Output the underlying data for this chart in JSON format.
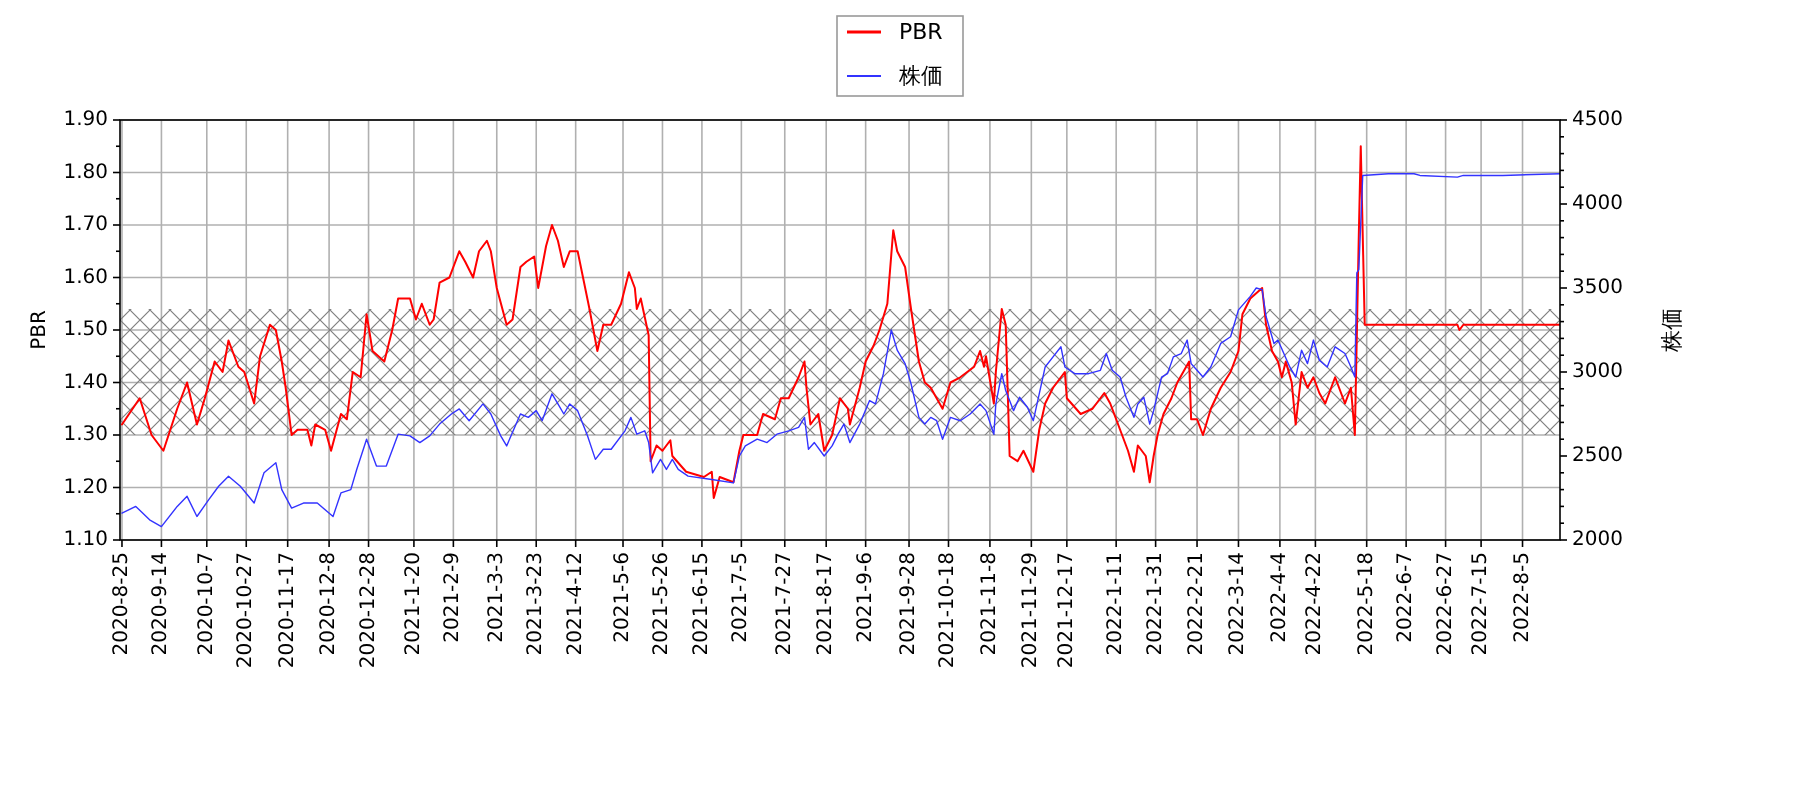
{
  "chart_data": {
    "type": "line",
    "ylabel": "PBR",
    "y2label": "株価",
    "legend": "top",
    "grid": true,
    "xlim": [
      "2020-08-24",
      "2022-08-24"
    ],
    "xticks": [
      {
        "value": "2020-08-25",
        "label": "2020-8-25"
      },
      {
        "value": "2020-09-14",
        "label": "2020-9-14"
      },
      {
        "value": "2020-10-07",
        "label": "2020-10-7"
      },
      {
        "value": "2020-10-27",
        "label": "2020-10-27"
      },
      {
        "value": "2020-11-17",
        "label": "2020-11-17"
      },
      {
        "value": "2020-12-08",
        "label": "2020-12-8"
      },
      {
        "value": "2020-12-28",
        "label": "2020-12-28"
      },
      {
        "value": "2021-01-20",
        "label": "2021-1-20"
      },
      {
        "value": "2021-02-09",
        "label": "2021-2-9"
      },
      {
        "value": "2021-03-03",
        "label": "2021-3-3"
      },
      {
        "value": "2021-03-23",
        "label": "2021-3-23"
      },
      {
        "value": "2021-04-12",
        "label": "2021-4-12"
      },
      {
        "value": "2021-05-06",
        "label": "2021-5-6"
      },
      {
        "value": "2021-05-26",
        "label": "2021-5-26"
      },
      {
        "value": "2021-06-15",
        "label": "2021-6-15"
      },
      {
        "value": "2021-07-05",
        "label": "2021-7-5"
      },
      {
        "value": "2021-07-27",
        "label": "2021-7-27"
      },
      {
        "value": "2021-08-17",
        "label": "2021-8-17"
      },
      {
        "value": "2021-09-06",
        "label": "2021-9-6"
      },
      {
        "value": "2021-09-28",
        "label": "2021-9-28"
      },
      {
        "value": "2021-10-18",
        "label": "2021-10-18"
      },
      {
        "value": "2021-11-08",
        "label": "2021-11-8"
      },
      {
        "value": "2021-11-29",
        "label": "2021-11-29"
      },
      {
        "value": "2021-12-17",
        "label": "2021-12-17"
      },
      {
        "value": "2022-01-11",
        "label": "2022-1-11"
      },
      {
        "value": "2022-01-31",
        "label": "2022-1-31"
      },
      {
        "value": "2022-02-21",
        "label": "2022-2-21"
      },
      {
        "value": "2022-03-14",
        "label": "2022-3-14"
      },
      {
        "value": "2022-04-04",
        "label": "2022-4-4"
      },
      {
        "value": "2022-04-22",
        "label": "2022-4-22"
      },
      {
        "value": "2022-05-18",
        "label": "2022-5-18"
      },
      {
        "value": "2022-06-07",
        "label": "2022-6-7"
      },
      {
        "value": "2022-06-27",
        "label": "2022-6-27"
      },
      {
        "value": "2022-07-15",
        "label": "2022-7-15"
      },
      {
        "value": "2022-08-05",
        "label": "2022-8-5"
      }
    ],
    "ylim": [
      1.1,
      1.9
    ],
    "yticks": [
      {
        "value": 1.1,
        "label": "1.10"
      },
      {
        "value": 1.15,
        "label": null
      },
      {
        "value": 1.2,
        "label": "1.20"
      },
      {
        "value": 1.25,
        "label": null
      },
      {
        "value": 1.3,
        "label": "1.30"
      },
      {
        "value": 1.35,
        "label": null
      },
      {
        "value": 1.4,
        "label": "1.40"
      },
      {
        "value": 1.45,
        "label": null
      },
      {
        "value": 1.5,
        "label": "1.50"
      },
      {
        "value": 1.55,
        "label": null
      },
      {
        "value": 1.6,
        "label": "1.60"
      },
      {
        "value": 1.65,
        "label": null
      },
      {
        "value": 1.7,
        "label": "1.70"
      },
      {
        "value": 1.75,
        "label": null
      },
      {
        "value": 1.8,
        "label": "1.80"
      },
      {
        "value": 1.85,
        "label": null
      },
      {
        "value": 1.9,
        "label": "1.90"
      }
    ],
    "y2lim": [
      2000,
      4500
    ],
    "y2ticks": [
      2000,
      {
        "value": 2100,
        "label": null
      },
      {
        "value": 2200,
        "label": null
      },
      {
        "value": 2300,
        "label": null
      },
      {
        "value": 2400,
        "label": null
      },
      2500,
      {
        "value": 2600,
        "label": null
      },
      {
        "value": 2700,
        "label": null
      },
      {
        "value": 2800,
        "label": null
      },
      {
        "value": 2900,
        "label": null
      },
      3000,
      {
        "value": 3100,
        "label": null
      },
      {
        "value": 3200,
        "label": null
      },
      {
        "value": 3300,
        "label": null
      },
      {
        "value": 3400,
        "label": null
      },
      3500,
      {
        "value": 3600,
        "label": null
      },
      {
        "value": 3700,
        "label": null
      },
      {
        "value": 3800,
        "label": null
      },
      {
        "value": 3900,
        "label": null
      },
      4000,
      {
        "value": 4100,
        "label": null
      },
      {
        "value": 4200,
        "label": null
      },
      {
        "value": 4300,
        "label": null
      },
      {
        "value": 4400,
        "label": null
      },
      4500
    ],
    "bands": [
      {
        "axis": "y",
        "from": 1.3,
        "to": 1.54,
        "color": "#808080"
      }
    ],
    "series": [
      {
        "name": "PBR",
        "color": "#ff0000",
        "x": [
          "2020-08-25",
          "2020-09-03",
          "2020-09-09",
          "2020-09-15",
          "2020-09-22",
          "2020-09-27",
          "2020-10-02",
          "2020-10-06",
          "2020-10-11",
          "2020-10-15",
          "2020-10-18",
          "2020-10-23",
          "2020-10-26",
          "2020-10-31",
          "2020-11-03",
          "2020-11-08",
          "2020-11-11",
          "2020-11-14",
          "2020-11-16",
          "2020-11-19",
          "2020-11-22",
          "2020-11-27",
          "2020-11-29",
          "2020-12-01",
          "2020-12-06",
          "2020-12-09",
          "2020-12-14",
          "2020-12-17",
          "2020-12-20",
          "2020-12-24",
          "2020-12-27",
          "2020-12-30",
          "2021-01-05",
          "2021-01-09",
          "2021-01-12",
          "2021-01-18",
          "2021-01-21",
          "2021-01-24",
          "2021-01-28",
          "2021-01-30",
          "2021-02-02",
          "2021-02-07",
          "2021-02-12",
          "2021-02-15",
          "2021-02-19",
          "2021-02-22",
          "2021-02-26",
          "2021-02-28",
          "2021-03-03",
          "2021-03-08",
          "2021-03-11",
          "2021-03-15",
          "2021-03-18",
          "2021-03-22",
          "2021-03-24",
          "2021-03-28",
          "2021-03-31",
          "2021-04-03",
          "2021-04-06",
          "2021-04-09",
          "2021-04-13",
          "2021-04-19",
          "2021-04-23",
          "2021-04-26",
          "2021-04-30",
          "2021-05-05",
          "2021-05-09",
          "2021-05-12",
          "2021-05-13",
          "2021-05-15",
          "2021-05-19",
          "2021-05-20",
          "2021-05-23",
          "2021-05-26",
          "2021-05-30",
          "2021-05-31",
          "2021-06-07",
          "2021-06-16",
          "2021-06-20",
          "2021-06-21",
          "2021-06-24",
          "2021-07-01",
          "2021-07-04",
          "2021-07-06",
          "2021-07-13",
          "2021-07-16",
          "2021-07-22",
          "2021-07-25",
          "2021-07-29",
          "2021-08-03",
          "2021-08-06",
          "2021-08-07",
          "2021-08-09",
          "2021-08-13",
          "2021-08-16",
          "2021-08-20",
          "2021-08-24",
          "2021-08-28",
          "2021-08-29",
          "2021-09-03",
          "2021-09-06",
          "2021-09-10",
          "2021-09-13",
          "2021-09-17",
          "2021-09-20",
          "2021-09-22",
          "2021-09-26",
          "2021-09-29",
          "2021-10-03",
          "2021-10-06",
          "2021-10-09",
          "2021-10-15",
          "2021-10-19",
          "2021-10-24",
          "2021-10-31",
          "2021-11-03",
          "2021-11-05",
          "2021-11-06",
          "2021-11-10",
          "2021-11-11",
          "2021-11-14",
          "2021-11-16",
          "2021-11-18",
          "2021-11-22",
          "2021-11-25",
          "2021-11-30",
          "2021-12-03",
          "2021-12-06",
          "2021-12-10",
          "2021-12-16",
          "2021-12-17",
          "2021-12-24",
          "2021-12-30",
          "2022-01-05",
          "2022-01-08",
          "2022-01-11",
          "2022-01-14",
          "2022-01-17",
          "2022-01-20",
          "2022-01-22",
          "2022-01-26",
          "2022-01-28",
          "2022-01-30",
          "2022-02-01",
          "2022-02-04",
          "2022-02-08",
          "2022-02-11",
          "2022-02-14",
          "2022-02-17",
          "2022-02-18",
          "2022-02-21",
          "2022-02-24",
          "2022-02-28",
          "2022-03-05",
          "2022-03-10",
          "2022-03-14",
          "2022-03-16",
          "2022-03-20",
          "2022-03-23",
          "2022-03-26",
          "2022-03-28",
          "2022-03-31",
          "2022-04-03",
          "2022-04-05",
          "2022-04-07",
          "2022-04-10",
          "2022-04-12",
          "2022-04-15",
          "2022-04-18",
          "2022-04-21",
          "2022-04-24",
          "2022-04-27",
          "2022-05-02",
          "2022-05-07",
          "2022-05-10",
          "2022-05-12",
          "2022-05-14",
          "2022-05-15",
          "2022-05-17",
          "2022-07-03",
          "2022-07-04",
          "2022-07-06",
          "2022-08-24"
        ],
        "values": [
          1.32,
          1.37,
          1.3,
          1.27,
          1.35,
          1.4,
          1.32,
          1.37,
          1.44,
          1.42,
          1.48,
          1.43,
          1.42,
          1.36,
          1.45,
          1.51,
          1.5,
          1.44,
          1.39,
          1.3,
          1.31,
          1.31,
          1.28,
          1.32,
          1.31,
          1.27,
          1.34,
          1.33,
          1.42,
          1.41,
          1.53,
          1.46,
          1.44,
          1.5,
          1.56,
          1.56,
          1.52,
          1.55,
          1.51,
          1.52,
          1.59,
          1.6,
          1.65,
          1.63,
          1.6,
          1.65,
          1.67,
          1.65,
          1.58,
          1.51,
          1.52,
          1.62,
          1.63,
          1.64,
          1.58,
          1.66,
          1.7,
          1.67,
          1.62,
          1.65,
          1.65,
          1.54,
          1.46,
          1.51,
          1.51,
          1.55,
          1.61,
          1.58,
          1.54,
          1.56,
          1.49,
          1.25,
          1.28,
          1.27,
          1.29,
          1.26,
          1.23,
          1.22,
          1.23,
          1.18,
          1.22,
          1.21,
          1.27,
          1.3,
          1.3,
          1.34,
          1.33,
          1.37,
          1.37,
          1.41,
          1.44,
          1.39,
          1.32,
          1.34,
          1.27,
          1.3,
          1.37,
          1.35,
          1.32,
          1.39,
          1.44,
          1.47,
          1.5,
          1.55,
          1.69,
          1.65,
          1.62,
          1.54,
          1.44,
          1.4,
          1.39,
          1.35,
          1.4,
          1.41,
          1.43,
          1.46,
          1.43,
          1.45,
          1.36,
          1.42,
          1.54,
          1.51,
          1.26,
          1.25,
          1.27,
          1.23,
          1.31,
          1.36,
          1.39,
          1.42,
          1.37,
          1.34,
          1.35,
          1.38,
          1.36,
          1.33,
          1.3,
          1.27,
          1.23,
          1.28,
          1.26,
          1.21,
          1.26,
          1.3,
          1.34,
          1.37,
          1.4,
          1.42,
          1.44,
          1.33,
          1.33,
          1.3,
          1.35,
          1.39,
          1.42,
          1.46,
          1.53,
          1.56,
          1.57,
          1.58,
          1.51,
          1.46,
          1.44,
          1.41,
          1.44,
          1.4,
          1.32,
          1.42,
          1.39,
          1.41,
          1.38,
          1.36,
          1.41,
          1.36,
          1.39,
          1.3,
          1.68,
          1.85,
          1.51,
          1.51,
          1.5,
          1.51,
          1.51
        ]
      },
      {
        "name": "株価",
        "color": "#3333ff",
        "axis": "y2",
        "x": [
          "2020-08-25",
          "2020-09-01",
          "2020-09-08",
          "2020-09-14",
          "2020-09-22",
          "2020-09-27",
          "2020-10-02",
          "2020-10-08",
          "2020-10-13",
          "2020-10-18",
          "2020-10-24",
          "2020-10-31",
          "2020-11-05",
          "2020-11-11",
          "2020-11-14",
          "2020-11-19",
          "2020-11-25",
          "2020-12-02",
          "2020-12-10",
          "2020-12-14",
          "2020-12-19",
          "2020-12-22",
          "2020-12-27",
          "2021-01-01",
          "2021-01-06",
          "2021-01-12",
          "2021-01-18",
          "2021-01-23",
          "2021-01-28",
          "2021-02-02",
          "2021-02-08",
          "2021-02-12",
          "2021-02-17",
          "2021-02-24",
          "2021-02-28",
          "2021-03-05",
          "2021-03-08",
          "2021-03-15",
          "2021-03-19",
          "2021-03-23",
          "2021-03-26",
          "2021-03-31",
          "2021-04-03",
          "2021-04-06",
          "2021-04-09",
          "2021-04-13",
          "2021-04-18",
          "2021-04-22",
          "2021-04-26",
          "2021-04-30",
          "2021-05-07",
          "2021-05-10",
          "2021-05-13",
          "2021-05-17",
          "2021-05-19",
          "2021-05-21",
          "2021-05-25",
          "2021-05-28",
          "2021-05-31",
          "2021-06-03",
          "2021-06-08",
          "2021-06-20",
          "2021-07-01",
          "2021-07-04",
          "2021-07-07",
          "2021-07-13",
          "2021-07-18",
          "2021-07-23",
          "2021-07-29",
          "2021-08-03",
          "2021-08-06",
          "2021-08-08",
          "2021-08-11",
          "2021-08-16",
          "2021-08-20",
          "2021-08-23",
          "2021-08-26",
          "2021-08-29",
          "2021-09-03",
          "2021-09-08",
          "2021-09-11",
          "2021-09-15",
          "2021-09-19",
          "2021-09-22",
          "2021-09-26",
          "2021-09-29",
          "2021-10-03",
          "2021-10-06",
          "2021-10-09",
          "2021-10-12",
          "2021-10-15",
          "2021-10-19",
          "2021-10-24",
          "2021-10-29",
          "2021-11-03",
          "2021-11-06",
          "2021-11-10",
          "2021-11-11",
          "2021-11-14",
          "2021-11-16",
          "2021-11-20",
          "2021-11-23",
          "2021-11-27",
          "2021-11-30",
          "2021-12-03",
          "2021-12-06",
          "2021-12-10",
          "2021-12-14",
          "2021-12-16",
          "2021-12-21",
          "2021-12-28",
          "2022-01-03",
          "2022-01-06",
          "2022-01-09",
          "2022-01-13",
          "2022-01-16",
          "2022-01-20",
          "2022-01-22",
          "2022-01-25",
          "2022-01-28",
          "2022-01-30",
          "2022-02-03",
          "2022-02-06",
          "2022-02-09",
          "2022-02-13",
          "2022-02-16",
          "2022-02-18",
          "2022-02-21",
          "2022-02-24",
          "2022-02-28",
          "2022-03-05",
          "2022-03-10",
          "2022-03-14",
          "2022-03-17",
          "2022-03-20",
          "2022-03-23",
          "2022-03-26",
          "2022-03-28",
          "2022-04-01",
          "2022-04-03",
          "2022-04-06",
          "2022-04-09",
          "2022-04-12",
          "2022-04-15",
          "2022-04-18",
          "2022-04-21",
          "2022-04-24",
          "2022-04-28",
          "2022-05-02",
          "2022-05-07",
          "2022-05-10",
          "2022-05-12",
          "2022-05-13",
          "2022-05-14",
          "2022-05-16",
          "2022-05-29",
          "2022-06-11",
          "2022-06-14",
          "2022-07-03",
          "2022-07-06",
          "2022-07-26",
          "2022-08-24"
        ],
        "values": [
          2160,
          2200,
          2120,
          2080,
          2200,
          2260,
          2140,
          2240,
          2320,
          2380,
          2320,
          2220,
          2400,
          2460,
          2300,
          2190,
          2220,
          2220,
          2140,
          2280,
          2300,
          2420,
          2600,
          2440,
          2440,
          2630,
          2620,
          2580,
          2620,
          2690,
          2750,
          2780,
          2710,
          2810,
          2750,
          2620,
          2560,
          2750,
          2730,
          2770,
          2710,
          2870,
          2810,
          2750,
          2810,
          2770,
          2620,
          2480,
          2540,
          2540,
          2650,
          2730,
          2630,
          2650,
          2580,
          2400,
          2480,
          2420,
          2480,
          2420,
          2380,
          2360,
          2340,
          2500,
          2560,
          2600,
          2580,
          2630,
          2650,
          2670,
          2730,
          2540,
          2580,
          2500,
          2560,
          2630,
          2690,
          2580,
          2690,
          2830,
          2810,
          2990,
          3250,
          3130,
          3050,
          2930,
          2730,
          2690,
          2730,
          2710,
          2600,
          2730,
          2710,
          2750,
          2810,
          2770,
          2630,
          2810,
          2990,
          2890,
          2770,
          2850,
          2790,
          2710,
          2870,
          3030,
          3090,
          3150,
          3030,
          2990,
          2990,
          3010,
          3110,
          3010,
          2970,
          2850,
          2730,
          2810,
          2850,
          2690,
          2770,
          2970,
          2990,
          3090,
          3110,
          3190,
          3050,
          3010,
          2970,
          3030,
          3170,
          3210,
          3370,
          3410,
          3450,
          3500,
          3490,
          3330,
          3170,
          3190,
          3110,
          3030,
          2970,
          3130,
          3050,
          3190,
          3070,
          3030,
          3150,
          3110,
          3030,
          2970,
          3590,
          3610,
          4170,
          4180,
          4180,
          4170,
          4160,
          4170,
          4170,
          4180
        ]
      }
    ]
  }
}
